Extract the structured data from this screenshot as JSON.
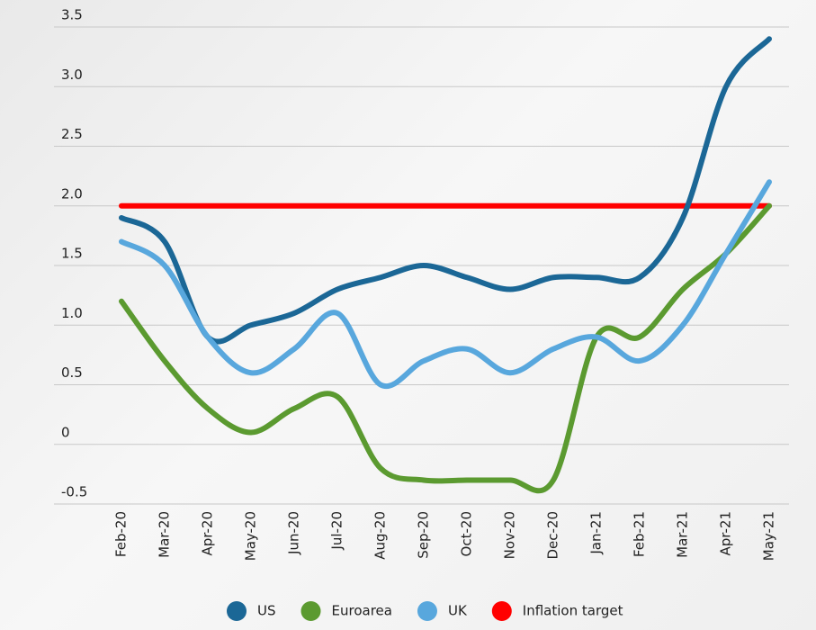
{
  "chart_data": {
    "type": "line",
    "categories": [
      "Feb-20",
      "Mar-20",
      "Apr-20",
      "May-20",
      "Jun-20",
      "Jul-20",
      "Aug-20",
      "Sep-20",
      "Oct-20",
      "Nov-20",
      "Dec-20",
      "Jan-21",
      "Feb-21",
      "Mar-21",
      "Apr-21",
      "May-21"
    ],
    "series": [
      {
        "name": "US",
        "color": "#1b6796",
        "values": [
          1.9,
          1.7,
          0.9,
          1.0,
          1.1,
          1.3,
          1.4,
          1.5,
          1.4,
          1.3,
          1.4,
          1.4,
          1.4,
          1.9,
          3.0,
          3.4
        ]
      },
      {
        "name": "Euroarea",
        "color": "#5b9a30",
        "values": [
          1.2,
          0.7,
          0.3,
          0.1,
          0.3,
          0.4,
          -0.2,
          -0.3,
          -0.3,
          -0.3,
          -0.3,
          0.9,
          0.9,
          1.3,
          1.6,
          2.0
        ]
      },
      {
        "name": "UK",
        "color": "#58a7dd",
        "values": [
          1.7,
          1.5,
          0.9,
          0.6,
          0.8,
          1.1,
          0.5,
          0.7,
          0.8,
          0.6,
          0.8,
          0.9,
          0.7,
          1.0,
          1.6,
          2.2
        ]
      },
      {
        "name": "Inflation target",
        "color": "#ff0000",
        "values": [
          2.0,
          2.0,
          2.0,
          2.0,
          2.0,
          2.0,
          2.0,
          2.0,
          2.0,
          2.0,
          2.0,
          2.0,
          2.0,
          2.0,
          2.0,
          2.0
        ]
      }
    ],
    "ylim": [
      -0.5,
      3.5
    ],
    "yticks": [
      -0.5,
      0,
      0.5,
      {
        "value": 1,
        "label": "1.0"
      },
      1.5,
      {
        "value": 2,
        "label": "2.0"
      },
      2.5,
      {
        "value": 3,
        "label": "3.0"
      },
      3.5
    ],
    "grid": true,
    "legend": "bottom"
  }
}
